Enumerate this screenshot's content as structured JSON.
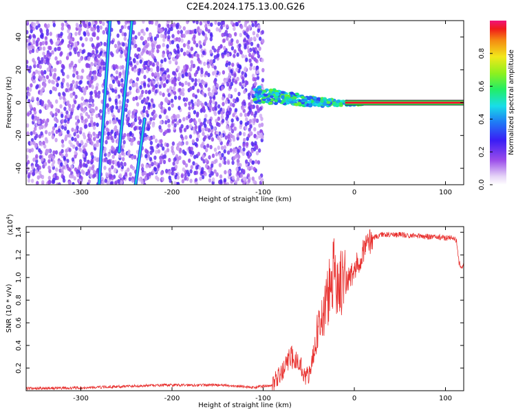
{
  "title": "C2E4.2024.175.13.00.G26",
  "chart_data": [
    {
      "type": "heatmap",
      "xlabel": "Height of straight line (km)",
      "ylabel": "Frequency (Hz)",
      "xlim": [
        -360,
        120
      ],
      "ylim": [
        -50,
        50
      ],
      "xticks": [
        -300,
        -200,
        -100,
        0,
        100
      ],
      "yticks": [
        -40,
        -20,
        0,
        20,
        40
      ],
      "colorbar": {
        "label": "Normalized spectral amplitude",
        "range": [
          0,
          1
        ],
        "ticks": [
          0.0,
          0.2,
          0.4,
          0.6,
          0.8
        ]
      },
      "features": [
        {
          "kind": "scatter-cloud",
          "x_range": [
            -360,
            -100
          ],
          "y_range": [
            -50,
            50
          ],
          "amplitude": 0.1
        },
        {
          "kind": "streak",
          "x": [
            -280,
            -268
          ],
          "y": [
            -50,
            50
          ],
          "amplitude": 0.3
        },
        {
          "kind": "streak",
          "x": [
            -258,
            -244
          ],
          "y": [
            -30,
            50
          ],
          "amplitude": 0.3
        },
        {
          "kind": "streak",
          "x": [
            -240,
            -230
          ],
          "y": [
            -50,
            -10
          ],
          "amplitude": 0.3
        },
        {
          "kind": "cluster",
          "x_range": [
            -110,
            10
          ],
          "y_range": [
            -15,
            10
          ],
          "amplitude": 0.55
        },
        {
          "kind": "carrier-line",
          "x_range": [
            -10,
            120
          ],
          "y": 0,
          "amplitude": 0.9
        }
      ]
    },
    {
      "type": "line",
      "xlabel": "Height of straight line (km)",
      "ylabel": "SNR (10 * v/v)",
      "multiplier": "(x10^4)",
      "multiplier_base": "(x10",
      "multiplier_exp": "4",
      "multiplier_close": ")",
      "xlim": [
        -360,
        120
      ],
      "ylim": [
        0,
        1.45
      ],
      "xticks": [
        -300,
        -200,
        -100,
        0,
        100
      ],
      "yticks": [
        0.2,
        0.4,
        0.6,
        0.8,
        1.0,
        1.2,
        1.4
      ],
      "color": "#e8302e",
      "series": [
        {
          "x": [
            -360,
            -300,
            -250,
            -200,
            -150,
            -110,
            -90,
            -80,
            -70,
            -60,
            -55,
            -50,
            -45,
            -40,
            -35,
            -30,
            -25,
            -20,
            -15,
            -10,
            -5,
            0,
            5,
            10,
            20,
            30,
            40,
            50,
            60,
            70,
            80,
            90,
            100,
            110,
            112,
            115,
            118,
            120
          ],
          "y": [
            0.02,
            0.025,
            0.04,
            0.05,
            0.05,
            0.03,
            0.05,
            0.15,
            0.3,
            0.25,
            0.15,
            0.12,
            0.3,
            0.55,
            0.65,
            0.8,
            0.95,
            1.05,
            0.95,
            0.95,
            1.0,
            1.05,
            1.15,
            1.25,
            1.35,
            1.38,
            1.38,
            1.38,
            1.37,
            1.37,
            1.36,
            1.36,
            1.35,
            1.35,
            1.33,
            1.12,
            1.1,
            1.1
          ]
        }
      ]
    }
  ]
}
